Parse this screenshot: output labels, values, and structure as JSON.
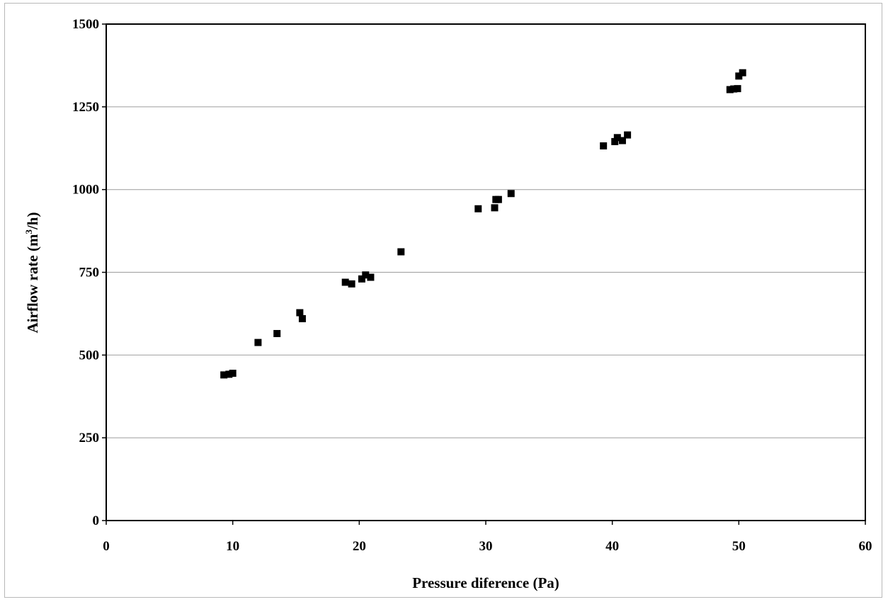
{
  "chart_data": {
    "type": "scatter",
    "title": "",
    "xlabel": "Pressure diference (Pa)",
    "ylabel_main": "Airflow rate (m",
    "ylabel_sup": "3",
    "ylabel_tail": "/h)",
    "xlim": [
      0,
      60
    ],
    "ylim": [
      0,
      1500
    ],
    "x_ticks": [
      0,
      10,
      20,
      30,
      40,
      50,
      60
    ],
    "y_ticks": [
      0,
      250,
      500,
      750,
      1000,
      1250,
      1500
    ],
    "x_tick_labels": [
      "0",
      "10",
      "20",
      "30",
      "40",
      "50",
      "60"
    ],
    "y_tick_labels": [
      "0",
      "250",
      "500",
      "750",
      "1000",
      "1250",
      "1500"
    ],
    "grid": "horizontal",
    "legend": "none",
    "marker": "square",
    "marker_color": "#000000",
    "grid_color": "#a8a8a8",
    "series": [
      {
        "points": [
          [
            9.3,
            440
          ],
          [
            9.7,
            442
          ],
          [
            10.0,
            445
          ],
          [
            12.0,
            538
          ],
          [
            13.5,
            565
          ],
          [
            15.3,
            628
          ],
          [
            15.5,
            610
          ],
          [
            18.9,
            720
          ],
          [
            19.4,
            715
          ],
          [
            20.2,
            730
          ],
          [
            20.5,
            742
          ],
          [
            20.9,
            735
          ],
          [
            23.3,
            812
          ],
          [
            29.4,
            942
          ],
          [
            30.7,
            945
          ],
          [
            30.8,
            970
          ],
          [
            31.0,
            970
          ],
          [
            32.0,
            988
          ],
          [
            39.3,
            1132
          ],
          [
            40.2,
            1145
          ],
          [
            40.4,
            1157
          ],
          [
            40.8,
            1148
          ],
          [
            41.2,
            1165
          ],
          [
            49.3,
            1302
          ],
          [
            49.6,
            1304
          ],
          [
            49.9,
            1305
          ],
          [
            50.0,
            1343
          ],
          [
            50.3,
            1353
          ]
        ]
      }
    ]
  }
}
